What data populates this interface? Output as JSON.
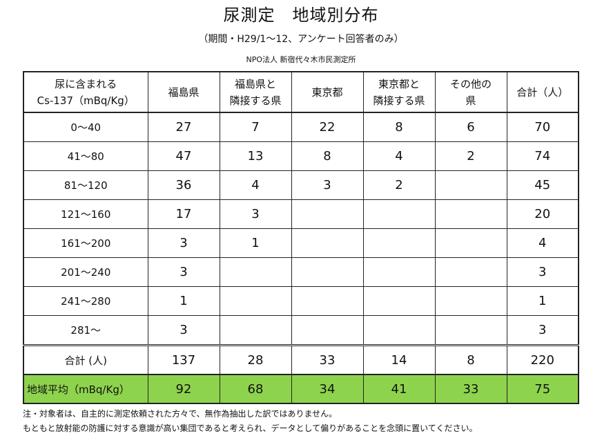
{
  "title": "尿測定　地域別分布",
  "subtitle": "（期間・H29/1～12、アンケート回答者のみ）",
  "organization": "NPO法人 新宿代々木市民測定所",
  "table": {
    "header": {
      "label_line1": "尿に含まれる",
      "label_line2": "Cs-137（mBq/Kg）",
      "col1": "福島県",
      "col2_line1": "福島県と",
      "col2_line2": "隣接する県",
      "col3": "東京都",
      "col4_line1": "東京都と",
      "col4_line2": "隣接する県",
      "col5_line1": "その他の",
      "col5_line2": "県",
      "col6": "合計（人）"
    },
    "rows": [
      {
        "label": "0～40",
        "v1": "27",
        "v2": "7",
        "v3": "22",
        "v4": "8",
        "v5": "6",
        "total": "70"
      },
      {
        "label": "41～80",
        "v1": "47",
        "v2": "13",
        "v3": "8",
        "v4": "4",
        "v5": "2",
        "total": "74"
      },
      {
        "label": "81～120",
        "v1": "36",
        "v2": "4",
        "v3": "3",
        "v4": "2",
        "v5": "",
        "total": "45"
      },
      {
        "label": "121～160",
        "v1": "17",
        "v2": "3",
        "v3": "",
        "v4": "",
        "v5": "",
        "total": "20"
      },
      {
        "label": "161～200",
        "v1": "3",
        "v2": "1",
        "v3": "",
        "v4": "",
        "v5": "",
        "total": "4"
      },
      {
        "label": "201～240",
        "v1": "3",
        "v2": "",
        "v3": "",
        "v4": "",
        "v5": "",
        "total": "3"
      },
      {
        "label": "241～280",
        "v1": "1",
        "v2": "",
        "v3": "",
        "v4": "",
        "v5": "",
        "total": "1"
      },
      {
        "label": "281～",
        "v1": "3",
        "v2": "",
        "v3": "",
        "v4": "",
        "v5": "",
        "total": "3"
      }
    ],
    "total_row": {
      "label": "合計 (人)",
      "v1": "137",
      "v2": "28",
      "v3": "33",
      "v4": "14",
      "v5": "8",
      "total": "220"
    },
    "avg_row": {
      "label": "地域平均（mBq/Kg）",
      "v1": "92",
      "v2": "68",
      "v3": "34",
      "v4": "41",
      "v5": "33",
      "total": "75"
    }
  },
  "notes": {
    "line1": "注・対象者は、自主的に測定依頼された方々で、無作為抽出した訳ではありません。",
    "line2": "もともと放射能の防護に対する意識が高い集団であると考えられ、データとして偏りがあることを念頭に置いてください。"
  },
  "colors": {
    "avg_row_bg": "#8ed34d"
  }
}
